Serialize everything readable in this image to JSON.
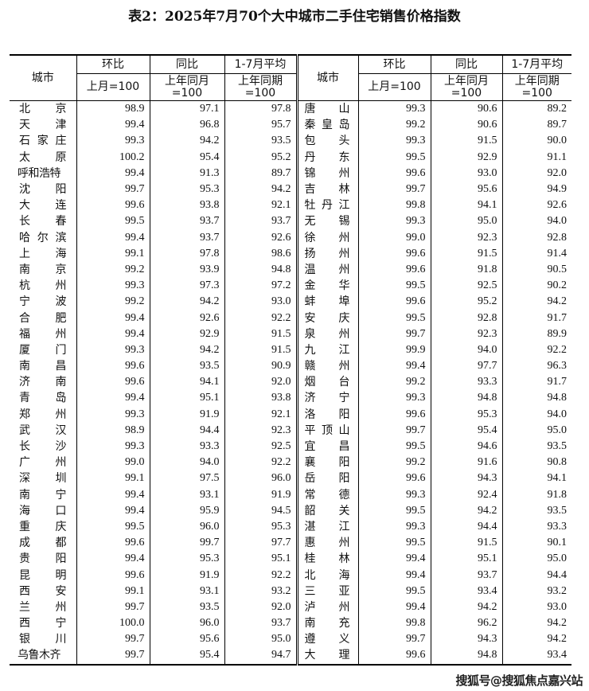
{
  "title": "表2：2025年7月70个大中城市二手住宅销售价格指数",
  "headers": {
    "city": "城市",
    "mom": "环比",
    "mom_base": "上月=100",
    "yoy": "同比",
    "yoy_base_1": "上年同月",
    "yoy_base_2": "=100",
    "avg": "1-7月平均",
    "avg_base_1": "上年同期",
    "avg_base_2": "=100"
  },
  "left_rows": [
    [
      "北京",
      "98.9",
      "97.1",
      "97.8"
    ],
    [
      "天津",
      "99.4",
      "96.8",
      "95.7"
    ],
    [
      "石家庄",
      "99.3",
      "94.2",
      "93.5"
    ],
    [
      "太原",
      "100.2",
      "95.4",
      "95.2"
    ],
    [
      "呼和浩特",
      "99.4",
      "91.3",
      "89.7"
    ],
    [
      "沈阳",
      "99.7",
      "95.3",
      "94.2"
    ],
    [
      "大连",
      "99.6",
      "93.8",
      "92.1"
    ],
    [
      "长春",
      "99.5",
      "93.7",
      "93.7"
    ],
    [
      "哈尔滨",
      "99.4",
      "93.7",
      "92.6"
    ],
    [
      "上海",
      "99.1",
      "97.8",
      "98.6"
    ],
    [
      "南京",
      "99.2",
      "93.9",
      "94.8"
    ],
    [
      "杭州",
      "99.3",
      "97.3",
      "97.2"
    ],
    [
      "宁波",
      "99.2",
      "94.2",
      "93.0"
    ],
    [
      "合肥",
      "99.4",
      "92.6",
      "92.2"
    ],
    [
      "福州",
      "99.4",
      "92.9",
      "91.5"
    ],
    [
      "厦门",
      "99.3",
      "94.2",
      "91.5"
    ],
    [
      "南昌",
      "99.6",
      "93.5",
      "90.9"
    ],
    [
      "济南",
      "99.6",
      "94.1",
      "92.0"
    ],
    [
      "青岛",
      "99.4",
      "95.1",
      "93.8"
    ],
    [
      "郑州",
      "99.3",
      "91.9",
      "92.1"
    ],
    [
      "武汉",
      "98.9",
      "94.4",
      "92.3"
    ],
    [
      "长沙",
      "99.3",
      "93.3",
      "92.5"
    ],
    [
      "广州",
      "99.0",
      "94.0",
      "92.2"
    ],
    [
      "深圳",
      "99.1",
      "97.5",
      "96.0"
    ],
    [
      "南宁",
      "99.4",
      "93.1",
      "91.9"
    ],
    [
      "海口",
      "99.4",
      "95.9",
      "94.5"
    ],
    [
      "重庆",
      "99.5",
      "96.0",
      "95.3"
    ],
    [
      "成都",
      "99.6",
      "99.7",
      "97.7"
    ],
    [
      "贵阳",
      "99.4",
      "95.3",
      "95.1"
    ],
    [
      "昆明",
      "99.6",
      "91.9",
      "92.2"
    ],
    [
      "西安",
      "99.1",
      "93.1",
      "93.2"
    ],
    [
      "兰州",
      "99.7",
      "93.5",
      "92.0"
    ],
    [
      "西宁",
      "100.0",
      "96.0",
      "93.7"
    ],
    [
      "银川",
      "99.7",
      "95.6",
      "95.0"
    ],
    [
      "乌鲁木齐",
      "99.7",
      "95.4",
      "94.7"
    ]
  ],
  "right_rows": [
    [
      "唐山",
      "99.3",
      "90.6",
      "89.2"
    ],
    [
      "秦皇岛",
      "99.2",
      "90.6",
      "89.7"
    ],
    [
      "包头",
      "99.3",
      "91.5",
      "90.0"
    ],
    [
      "丹东",
      "99.5",
      "92.9",
      "91.1"
    ],
    [
      "锦州",
      "99.6",
      "93.0",
      "92.0"
    ],
    [
      "吉林",
      "99.7",
      "95.6",
      "94.9"
    ],
    [
      "牡丹江",
      "99.8",
      "94.1",
      "92.6"
    ],
    [
      "无锡",
      "99.3",
      "95.0",
      "94.0"
    ],
    [
      "徐州",
      "99.0",
      "92.3",
      "92.8"
    ],
    [
      "扬州",
      "99.6",
      "91.5",
      "91.4"
    ],
    [
      "温州",
      "99.6",
      "91.8",
      "90.5"
    ],
    [
      "金华",
      "99.5",
      "92.5",
      "90.2"
    ],
    [
      "蚌埠",
      "99.6",
      "95.2",
      "94.2"
    ],
    [
      "安庆",
      "99.5",
      "92.8",
      "91.7"
    ],
    [
      "泉州",
      "99.7",
      "92.3",
      "89.9"
    ],
    [
      "九江",
      "99.9",
      "94.0",
      "92.2"
    ],
    [
      "赣州",
      "99.4",
      "97.7",
      "96.3"
    ],
    [
      "烟台",
      "99.2",
      "93.3",
      "91.7"
    ],
    [
      "济宁",
      "99.3",
      "94.8",
      "94.8"
    ],
    [
      "洛阳",
      "99.6",
      "95.3",
      "94.0"
    ],
    [
      "平顶山",
      "99.7",
      "95.4",
      "95.0"
    ],
    [
      "宜昌",
      "99.5",
      "94.6",
      "93.5"
    ],
    [
      "襄阳",
      "99.2",
      "91.6",
      "90.8"
    ],
    [
      "岳阳",
      "99.6",
      "94.3",
      "94.1"
    ],
    [
      "常德",
      "99.3",
      "92.4",
      "91.8"
    ],
    [
      "韶关",
      "99.5",
      "94.2",
      "93.5"
    ],
    [
      "湛江",
      "99.3",
      "94.4",
      "93.3"
    ],
    [
      "惠州",
      "99.5",
      "91.5",
      "90.1"
    ],
    [
      "桂林",
      "99.4",
      "95.1",
      "95.0"
    ],
    [
      "北海",
      "99.4",
      "93.7",
      "94.4"
    ],
    [
      "三亚",
      "99.5",
      "93.4",
      "93.2"
    ],
    [
      "泸州",
      "99.4",
      "94.2",
      "93.0"
    ],
    [
      "南充",
      "99.8",
      "96.2",
      "94.2"
    ],
    [
      "遵义",
      "99.7",
      "94.3",
      "94.2"
    ],
    [
      "大理",
      "99.6",
      "94.8",
      "93.4"
    ]
  ],
  "watermark": "搜狐号@搜狐焦点嘉兴站"
}
